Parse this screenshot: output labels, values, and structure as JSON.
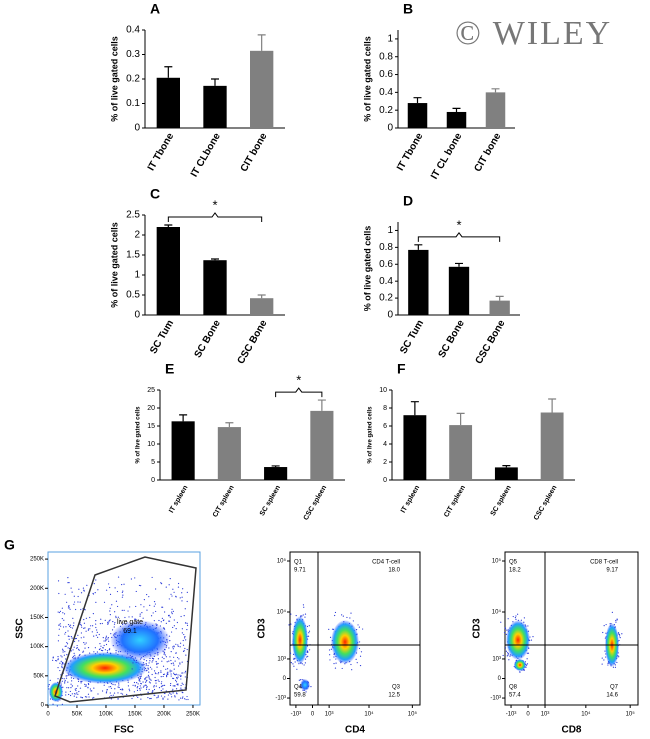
{
  "watermark": "© WILEY",
  "chart_data": [
    {
      "type": "bar",
      "title": "A",
      "ylabel": "% of live gated cells",
      "categories": [
        "IT Tbone",
        "IT CLbone",
        "CIT bone"
      ],
      "values": [
        0.205,
        0.172,
        0.315
      ],
      "errors": [
        0.045,
        0.028,
        0.065
      ],
      "colors": [
        "#000000",
        "#000000",
        "#808080"
      ],
      "ylim": [
        0,
        0.4
      ],
      "yticks": [
        0,
        0.1,
        0.2,
        0.3,
        0.4
      ]
    },
    {
      "type": "bar",
      "title": "B",
      "ylabel": "% of live gated cells",
      "categories": [
        "IT Tbone",
        "IT CL bone",
        "CIT bone"
      ],
      "values": [
        0.28,
        0.18,
        0.4
      ],
      "errors": [
        0.06,
        0.04,
        0.04
      ],
      "colors": [
        "#000000",
        "#000000",
        "#808080"
      ],
      "ylim": [
        0,
        1.1
      ],
      "yticks": [
        0,
        0.2,
        0.4,
        0.6,
        0.8,
        1
      ]
    },
    {
      "type": "bar",
      "title": "C",
      "ylabel": "% of live gated cells",
      "annotation": "*",
      "categories": [
        "SC Tum",
        "SC Bone",
        "CSC Bone"
      ],
      "values": [
        2.2,
        1.37,
        0.42
      ],
      "errors": [
        0.05,
        0.03,
        0.08
      ],
      "colors": [
        "#000000",
        "#000000",
        "#808080"
      ],
      "ylim": [
        0,
        2.5
      ],
      "yticks": [
        0,
        0.5,
        1,
        1.5,
        2,
        2.5
      ]
    },
    {
      "type": "bar",
      "title": "D",
      "ylabel": "% of live gated cells",
      "annotation": "*",
      "categories": [
        "SC Tum",
        "SC Bone",
        "CSC Bone"
      ],
      "values": [
        0.77,
        0.57,
        0.17
      ],
      "errors": [
        0.06,
        0.04,
        0.05
      ],
      "colors": [
        "#000000",
        "#000000",
        "#808080"
      ],
      "ylim": [
        0,
        1.1
      ],
      "yticks": [
        0,
        0.2,
        0.4,
        0.6,
        0.8,
        1
      ]
    },
    {
      "type": "bar",
      "title": "E",
      "ylabel": "% of live gated cells",
      "annotation": "*",
      "categories": [
        "IT spleen",
        "CIT spleen",
        "SC spleen",
        "CSC spleen"
      ],
      "values": [
        16.3,
        14.7,
        3.6,
        19.2
      ],
      "errors": [
        1.8,
        1.2,
        0.3,
        3
      ],
      "colors": [
        "#000000",
        "#808080",
        "#000000",
        "#808080"
      ],
      "ylim": [
        0,
        25
      ],
      "yticks": [
        0,
        5,
        10,
        15,
        20,
        25
      ]
    },
    {
      "type": "bar",
      "title": "F",
      "ylabel": "% of live gated cells",
      "categories": [
        "IT spleen",
        "CIT spleen",
        "SC spleen",
        "CSC spleen"
      ],
      "values": [
        7.2,
        6.1,
        1.4,
        7.5
      ],
      "errors": [
        1.5,
        1.3,
        0.2,
        1.5
      ],
      "colors": [
        "#000000",
        "#808080",
        "#000000",
        "#808080"
      ],
      "ylim": [
        0,
        10
      ],
      "yticks": [
        0,
        2,
        4,
        6,
        8,
        10
      ]
    },
    {
      "type": "density",
      "title": "G",
      "xlabel": "FSC",
      "ylabel": "SSC",
      "scale": "linear",
      "xlim": [
        0,
        262144
      ],
      "ylim": [
        0,
        262144
      ],
      "xticks": [
        0,
        {
          "value": 50000,
          "label": "50K"
        },
        {
          "value": 100000,
          "label": "100K"
        },
        {
          "value": 150000,
          "label": "150K"
        },
        {
          "value": 200000,
          "label": "200K"
        },
        {
          "value": 250000,
          "label": "250K"
        }
      ],
      "yticks": [
        0,
        {
          "value": 50000,
          "label": "50K"
        },
        {
          "value": 100000,
          "label": "100K"
        },
        {
          "value": 150000,
          "label": "150K"
        },
        {
          "value": 200000,
          "label": "200K"
        },
        {
          "value": 250000,
          "label": "250K"
        }
      ],
      "gates": [
        {
          "name": "live gate",
          "value": "69.1"
        }
      ]
    },
    {
      "type": "density",
      "xlabel": "CD4",
      "ylabel": "CD3",
      "scale": "biexponential",
      "xlim": [
        -1500,
        150000
      ],
      "ylim": [
        -1500,
        150000
      ],
      "xticks": [
        {
          "value": -1000,
          "label": "-10³"
        },
        0,
        {
          "value": 1000,
          "label": "10³"
        },
        {
          "value": 10000,
          "label": "10⁴"
        },
        {
          "value": 100000,
          "label": "10⁵"
        }
      ],
      "yticks": [
        {
          "value": -1000,
          "label": "-10³"
        },
        0,
        {
          "value": 1000,
          "label": "10³"
        },
        {
          "value": 10000,
          "label": "10⁴"
        },
        {
          "value": 100000,
          "label": "10⁵"
        }
      ],
      "gates": [
        {
          "name": "Q1",
          "value": "9.71"
        },
        {
          "name": "CD4 T-cell",
          "value": "18.0"
        },
        {
          "name": "Q4",
          "value": "59.8"
        },
        {
          "name": "Q3",
          "value": "12.5"
        }
      ]
    },
    {
      "type": "density",
      "xlabel": "CD8",
      "ylabel": "CD3",
      "scale": "biexponential",
      "xlim": [
        -1500,
        150000
      ],
      "ylim": [
        -1500,
        150000
      ],
      "xticks": [
        {
          "value": -1000,
          "label": "-10³"
        },
        0,
        {
          "value": 1000,
          "label": "10³"
        },
        {
          "value": 10000,
          "label": "10⁴"
        },
        {
          "value": 100000,
          "label": "10⁵"
        }
      ],
      "yticks": [
        {
          "value": -1000,
          "label": "-10³"
        },
        0,
        {
          "value": 1000,
          "label": "10³"
        },
        {
          "value": 10000,
          "label": "10⁴"
        },
        {
          "value": 100000,
          "label": "10⁵"
        }
      ],
      "gates": [
        {
          "name": "Q5",
          "value": "18.2"
        },
        {
          "name": "CD8 T-cell",
          "value": "9.17"
        },
        {
          "name": "Q8",
          "value": "57.4"
        },
        {
          "name": "Q7",
          "value": "14.6"
        }
      ]
    }
  ]
}
